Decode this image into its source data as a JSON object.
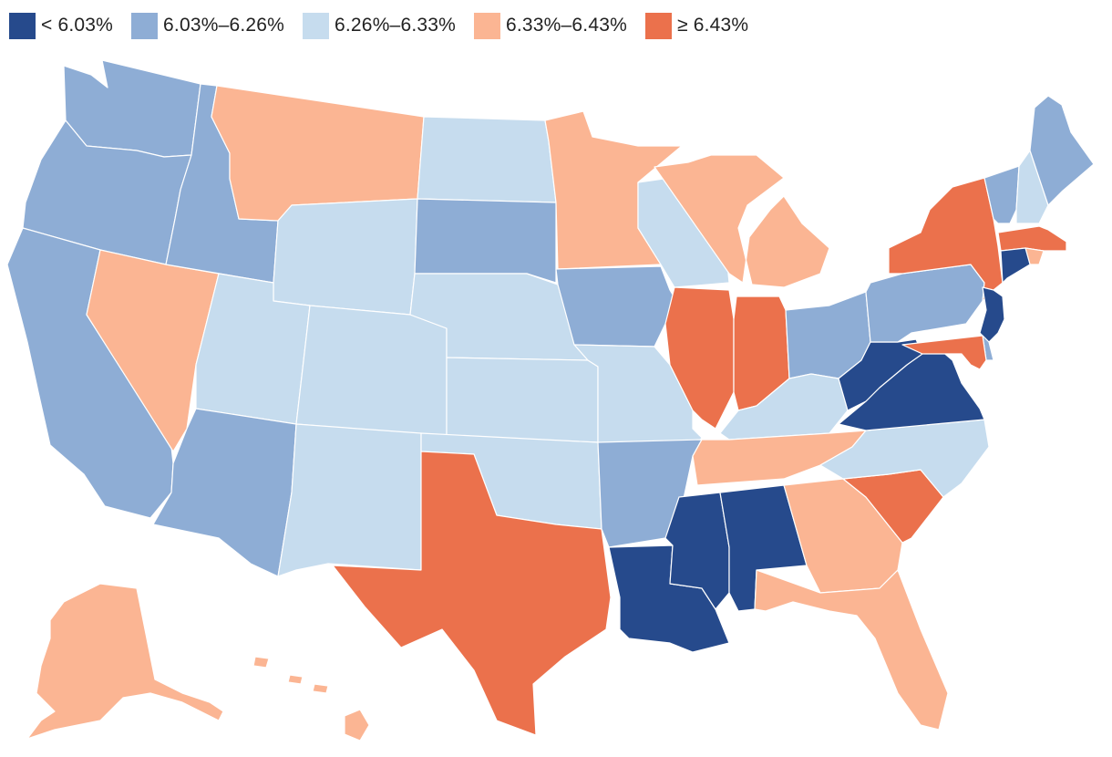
{
  "legend": [
    {
      "label": "< 6.03%",
      "color": "#264a8c"
    },
    {
      "label": "6.03%–6.26%",
      "color": "#8eadd5"
    },
    {
      "label": "6.26%–6.33%",
      "color": "#c6dcee"
    },
    {
      "label": "6.33%–6.43%",
      "color": "#fbb593"
    },
    {
      "label": "≥ 6.43%",
      "color": "#eb714c"
    }
  ],
  "states": [
    {
      "id": "WA",
      "bin": 1
    },
    {
      "id": "OR",
      "bin": 1
    },
    {
      "id": "CA",
      "bin": 1
    },
    {
      "id": "NV",
      "bin": 3
    },
    {
      "id": "ID",
      "bin": 1
    },
    {
      "id": "MT",
      "bin": 3
    },
    {
      "id": "WY",
      "bin": 2
    },
    {
      "id": "UT",
      "bin": 2
    },
    {
      "id": "AZ",
      "bin": 1
    },
    {
      "id": "CO",
      "bin": 2
    },
    {
      "id": "NM",
      "bin": 2
    },
    {
      "id": "ND",
      "bin": 2
    },
    {
      "id": "SD",
      "bin": 1
    },
    {
      "id": "NE",
      "bin": 2
    },
    {
      "id": "KS",
      "bin": 2
    },
    {
      "id": "OK",
      "bin": 2
    },
    {
      "id": "TX",
      "bin": 4
    },
    {
      "id": "MN",
      "bin": 3
    },
    {
      "id": "IA",
      "bin": 1
    },
    {
      "id": "MO",
      "bin": 2
    },
    {
      "id": "AR",
      "bin": 1
    },
    {
      "id": "LA",
      "bin": 0
    },
    {
      "id": "WI",
      "bin": 2
    },
    {
      "id": "IL",
      "bin": 4
    },
    {
      "id": "MI",
      "bin": 3
    },
    {
      "id": "IN",
      "bin": 4
    },
    {
      "id": "OH",
      "bin": 1
    },
    {
      "id": "KY",
      "bin": 2
    },
    {
      "id": "TN",
      "bin": 3
    },
    {
      "id": "MS",
      "bin": 0
    },
    {
      "id": "AL",
      "bin": 0
    },
    {
      "id": "GA",
      "bin": 3
    },
    {
      "id": "FL",
      "bin": 3
    },
    {
      "id": "SC",
      "bin": 4
    },
    {
      "id": "NC",
      "bin": 2
    },
    {
      "id": "VA",
      "bin": 0
    },
    {
      "id": "WV",
      "bin": 0
    },
    {
      "id": "PA",
      "bin": 1
    },
    {
      "id": "NY",
      "bin": 4
    },
    {
      "id": "VT",
      "bin": 1
    },
    {
      "id": "NH",
      "bin": 2
    },
    {
      "id": "ME",
      "bin": 1
    },
    {
      "id": "MA",
      "bin": 4
    },
    {
      "id": "RI",
      "bin": 3
    },
    {
      "id": "CT",
      "bin": 0
    },
    {
      "id": "NJ",
      "bin": 0
    },
    {
      "id": "DE",
      "bin": 1
    },
    {
      "id": "MD",
      "bin": 4
    },
    {
      "id": "AK",
      "bin": 3
    },
    {
      "id": "HI",
      "bin": 3
    }
  ]
}
